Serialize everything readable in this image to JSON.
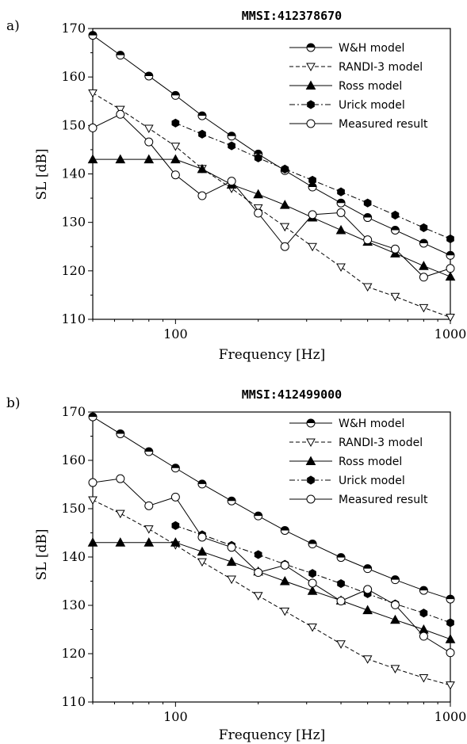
{
  "chart_data": [
    {
      "type": "line",
      "panel_label": "a)",
      "title": "MMSI:412378670",
      "xlabel": "Frequency [Hz]",
      "ylabel": "SL [dB]",
      "xscale": "log",
      "xlim": [
        50,
        1000
      ],
      "ylim": [
        110,
        170
      ],
      "x_ticks": [
        100,
        1000
      ],
      "y_ticks": [
        110,
        120,
        130,
        140,
        150,
        160,
        170
      ],
      "grid": false,
      "legend_position": "top-right",
      "series": [
        {
          "name": "W&H model",
          "line": "solid",
          "marker": "half-circle",
          "x": [
            50,
            63,
            80,
            100,
            125,
            160,
            200,
            250,
            315,
            400,
            500,
            630,
            800,
            1000
          ],
          "y": [
            168.6,
            164.5,
            160.2,
            156.2,
            152.0,
            147.8,
            144.1,
            140.7,
            137.3,
            134.0,
            131.0,
            128.4,
            125.7,
            123.2
          ]
        },
        {
          "name": "RANDI-3 model",
          "line": "dashed",
          "marker": "triangle-down-open",
          "x": [
            50,
            63,
            80,
            100,
            125,
            160,
            200,
            250,
            315,
            400,
            500,
            630,
            800,
            1000
          ],
          "y": [
            156.7,
            153.3,
            149.4,
            145.7,
            141.1,
            137.0,
            133.0,
            129.1,
            125.0,
            120.8,
            116.7,
            114.7,
            112.4,
            110.4
          ]
        },
        {
          "name": "Ross model",
          "line": "solid",
          "marker": "triangle-up-filled",
          "x": [
            50,
            63,
            80,
            100,
            125,
            160,
            200,
            250,
            315,
            400,
            500,
            630,
            800,
            1000
          ],
          "y": [
            143.0,
            143.0,
            143.0,
            143.0,
            141.0,
            137.8,
            135.8,
            133.6,
            131.0,
            128.4,
            126.0,
            123.6,
            121.0,
            118.8
          ]
        },
        {
          "name": "Urick model",
          "line": "dashdot",
          "marker": "hexagon-filled",
          "x": [
            100,
            125,
            160,
            200,
            250,
            315,
            400,
            500,
            630,
            800,
            1000
          ],
          "y": [
            150.5,
            148.2,
            145.8,
            143.3,
            141.0,
            138.7,
            136.3,
            134.0,
            131.5,
            128.9,
            126.6
          ]
        },
        {
          "name": "Measured result",
          "line": "solid",
          "marker": "circle-open",
          "x": [
            50,
            63,
            80,
            100,
            125,
            160,
            200,
            250,
            315,
            400,
            500,
            630,
            800,
            1000
          ],
          "y": [
            149.5,
            152.3,
            146.6,
            139.8,
            135.5,
            138.5,
            131.9,
            125.0,
            131.6,
            132.0,
            126.4,
            124.5,
            118.7,
            120.5
          ]
        }
      ]
    },
    {
      "type": "line",
      "panel_label": "b)",
      "title": "MMSI:412499000",
      "xlabel": "Frequency [Hz]",
      "ylabel": "SL [dB]",
      "xscale": "log",
      "xlim": [
        50,
        1000
      ],
      "ylim": [
        110,
        170
      ],
      "x_ticks": [
        100,
        1000
      ],
      "y_ticks": [
        110,
        120,
        130,
        140,
        150,
        160,
        170
      ],
      "grid": false,
      "legend_position": "top-right",
      "series": [
        {
          "name": "W&H model",
          "line": "solid",
          "marker": "half-circle",
          "x": [
            50,
            63,
            80,
            100,
            125,
            160,
            200,
            250,
            315,
            400,
            500,
            630,
            800,
            1000
          ],
          "y": [
            169.0,
            165.5,
            161.8,
            158.4,
            155.1,
            151.6,
            148.5,
            145.5,
            142.7,
            139.9,
            137.6,
            135.3,
            133.1,
            131.3
          ]
        },
        {
          "name": "RANDI-3 model",
          "line": "dashed",
          "marker": "triangle-down-open",
          "x": [
            50,
            63,
            80,
            100,
            125,
            160,
            200,
            250,
            315,
            400,
            500,
            630,
            800,
            1000
          ],
          "y": [
            151.8,
            149.0,
            145.8,
            142.5,
            139.0,
            135.4,
            132.0,
            128.8,
            125.5,
            122.0,
            118.9,
            116.9,
            115.0,
            113.5
          ]
        },
        {
          "name": "Ross model",
          "line": "solid",
          "marker": "triangle-up-filled",
          "x": [
            50,
            63,
            80,
            100,
            125,
            160,
            200,
            250,
            315,
            400,
            500,
            630,
            800,
            1000
          ],
          "y": [
            143.0,
            143.0,
            143.0,
            143.0,
            141.1,
            139.0,
            137.0,
            135.0,
            133.0,
            131.0,
            129.0,
            127.0,
            125.0,
            123.0
          ]
        },
        {
          "name": "Urick model",
          "line": "dashdot",
          "marker": "hexagon-filled",
          "x": [
            100,
            125,
            160,
            200,
            250,
            315,
            400,
            500,
            630,
            800,
            1000
          ],
          "y": [
            146.5,
            144.6,
            142.4,
            140.5,
            138.5,
            136.6,
            134.5,
            132.4,
            130.3,
            128.4,
            126.4
          ]
        },
        {
          "name": "Measured result",
          "line": "solid",
          "marker": "circle-open",
          "x": [
            50,
            63,
            80,
            100,
            125,
            160,
            200,
            250,
            315,
            400,
            500,
            630,
            800,
            1000
          ],
          "y": [
            155.4,
            156.2,
            150.6,
            152.4,
            144.1,
            142.0,
            136.8,
            138.3,
            134.6,
            130.9,
            133.3,
            130.1,
            123.6,
            120.2
          ]
        }
      ]
    }
  ]
}
